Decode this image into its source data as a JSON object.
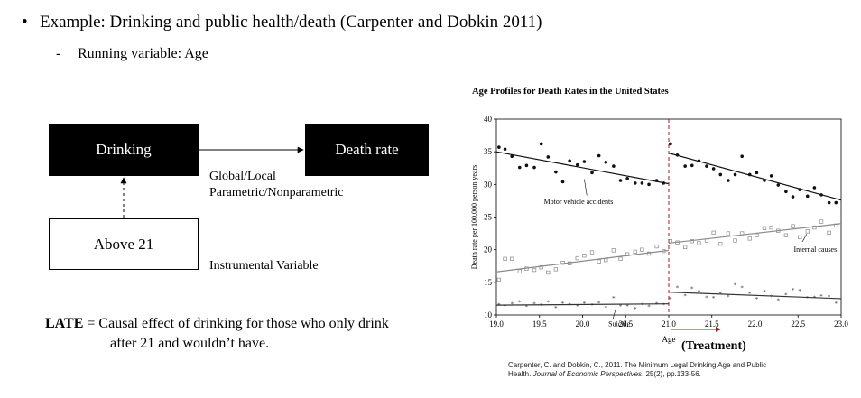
{
  "bullet": {
    "text": "Example: Drinking and public health/death (Carpenter and Dobkin 2011)"
  },
  "sub_bullet": {
    "marker": "-",
    "text": "Running variable: Age"
  },
  "diagram": {
    "drinking": "Drinking",
    "death_rate": "Death rate",
    "above21": "Above 21",
    "label_global_local": "Global/Local",
    "label_parametric": "Parametric/Nonparametric",
    "label_iv": "Instrumental Variable"
  },
  "late": {
    "term": "LATE",
    "line1": " = Causal effect of drinking for those who only drink",
    "line2": "after 21 and wouldn’t have."
  },
  "chart_title": "Age Profiles for Death Rates in the United States",
  "citation": {
    "line1": "Carpenter, C. and Dobkin, C., 2011. The Minimum Legal Drinking Age and Public",
    "line2_pre": "Health. ",
    "journal": "Journal of Economic Perspectives",
    "vol": ", 25",
    "issue": "(2), pp.133-56."
  },
  "chart_data": {
    "type": "scatter",
    "title": "Age Profiles for Death Rates in the United States",
    "xlabel": "Age",
    "ylabel": "Death rate per 100,000 person years",
    "xlim": [
      19.0,
      23.0
    ],
    "ylim": [
      10,
      40
    ],
    "xticks": [
      "19.0",
      "19.5",
      "20.0",
      "20.5",
      "21.0",
      "21.5",
      "22.0",
      "22.5",
      "23.0"
    ],
    "yticks": [
      "10",
      "15",
      "20",
      "25",
      "30",
      "35",
      "40"
    ],
    "cutoff": 21.0,
    "treatment_label": "(Treatment)",
    "series": [
      {
        "name": "Motor vehicle accidents",
        "marker": "filled-circle",
        "points": [
          [
            19.03,
            35.7
          ],
          [
            19.1,
            35.4
          ],
          [
            19.18,
            34.3
          ],
          [
            19.27,
            32.6
          ],
          [
            19.35,
            32.9
          ],
          [
            19.44,
            32.6
          ],
          [
            19.52,
            36.2
          ],
          [
            19.6,
            34.2
          ],
          [
            19.69,
            31.9
          ],
          [
            19.77,
            30.4
          ],
          [
            19.85,
            33.6
          ],
          [
            19.94,
            33.0
          ],
          [
            20.02,
            33.5
          ],
          [
            20.11,
            31.8
          ],
          [
            20.19,
            34.4
          ],
          [
            20.27,
            33.4
          ],
          [
            20.36,
            32.8
          ],
          [
            20.44,
            30.6
          ],
          [
            20.52,
            30.9
          ],
          [
            20.61,
            30.2
          ],
          [
            20.69,
            30.2
          ],
          [
            20.77,
            30.0
          ],
          [
            20.86,
            30.6
          ],
          [
            20.94,
            30.2
          ],
          [
            21.02,
            36.2
          ],
          [
            21.1,
            34.5
          ],
          [
            21.19,
            32.8
          ],
          [
            21.27,
            32.9
          ],
          [
            21.35,
            33.6
          ],
          [
            21.44,
            32.8
          ],
          [
            21.52,
            32.4
          ],
          [
            21.6,
            31.5
          ],
          [
            21.69,
            30.6
          ],
          [
            21.77,
            31.5
          ],
          [
            21.85,
            34.3
          ],
          [
            21.94,
            31.5
          ],
          [
            22.02,
            31.8
          ],
          [
            22.11,
            30.6
          ],
          [
            22.19,
            31.3
          ],
          [
            22.27,
            29.9
          ],
          [
            22.36,
            28.9
          ],
          [
            22.44,
            28.1
          ],
          [
            22.52,
            29.2
          ],
          [
            22.61,
            28.2
          ],
          [
            22.69,
            29.5
          ],
          [
            22.77,
            28.4
          ],
          [
            22.86,
            27.2
          ],
          [
            22.94,
            27.2
          ]
        ],
        "fit": [
          [
            [
              19.0,
              35.0
            ],
            [
              21.0,
              30.1
            ]
          ],
          [
            [
              21.0,
              34.8
            ],
            [
              23.0,
              27.6
            ]
          ]
        ]
      },
      {
        "name": "Internal causes",
        "marker": "open-square",
        "points": [
          [
            19.03,
            15.4
          ],
          [
            19.1,
            18.6
          ],
          [
            19.18,
            18.6
          ],
          [
            19.27,
            16.7
          ],
          [
            19.35,
            17.1
          ],
          [
            19.44,
            16.9
          ],
          [
            19.52,
            17.3
          ],
          [
            19.6,
            16.5
          ],
          [
            19.69,
            17.0
          ],
          [
            19.77,
            18.0
          ],
          [
            19.85,
            17.9
          ],
          [
            19.94,
            18.7
          ],
          [
            20.02,
            19.1
          ],
          [
            20.11,
            19.6
          ],
          [
            20.19,
            18.2
          ],
          [
            20.27,
            18.4
          ],
          [
            20.36,
            19.9
          ],
          [
            20.44,
            18.6
          ],
          [
            20.52,
            19.3
          ],
          [
            20.61,
            19.7
          ],
          [
            20.69,
            20.0
          ],
          [
            20.77,
            19.4
          ],
          [
            20.86,
            20.5
          ],
          [
            20.94,
            19.8
          ],
          [
            21.02,
            21.3
          ],
          [
            21.1,
            21.1
          ],
          [
            21.19,
            20.4
          ],
          [
            21.27,
            21.3
          ],
          [
            21.35,
            21.0
          ],
          [
            21.44,
            21.4
          ],
          [
            21.52,
            22.6
          ],
          [
            21.6,
            20.9
          ],
          [
            21.69,
            22.5
          ],
          [
            21.77,
            21.4
          ],
          [
            21.85,
            22.5
          ],
          [
            21.94,
            21.7
          ],
          [
            22.02,
            22.2
          ],
          [
            22.11,
            23.3
          ],
          [
            22.19,
            23.4
          ],
          [
            22.27,
            22.9
          ],
          [
            22.36,
            22.2
          ],
          [
            22.44,
            23.6
          ],
          [
            22.52,
            21.9
          ],
          [
            22.61,
            22.8
          ],
          [
            22.69,
            23.4
          ],
          [
            22.77,
            24.3
          ],
          [
            22.86,
            22.6
          ],
          [
            22.94,
            23.7
          ]
        ],
        "fit": [
          [
            [
              19.0,
              16.6
            ],
            [
              21.0,
              19.9
            ]
          ],
          [
            [
              21.0,
              21.0
            ],
            [
              23.0,
              24.0
            ]
          ]
        ]
      },
      {
        "name": "Suicide",
        "marker": "asterisk",
        "points": [
          [
            19.03,
            11.6
          ],
          [
            19.1,
            11.4
          ],
          [
            19.18,
            11.7
          ],
          [
            19.27,
            12.0
          ],
          [
            19.35,
            11.3
          ],
          [
            19.44,
            11.7
          ],
          [
            19.52,
            11.5
          ],
          [
            19.6,
            12.0
          ],
          [
            19.69,
            11.1
          ],
          [
            19.77,
            11.8
          ],
          [
            19.85,
            11.6
          ],
          [
            19.94,
            11.4
          ],
          [
            20.02,
            11.8
          ],
          [
            20.11,
            11.5
          ],
          [
            20.19,
            11.9
          ],
          [
            20.27,
            11.2
          ],
          [
            20.36,
            12.6
          ],
          [
            20.44,
            11.4
          ],
          [
            20.52,
            11.4
          ],
          [
            20.61,
            11.0
          ],
          [
            20.69,
            11.6
          ],
          [
            20.77,
            11.3
          ],
          [
            20.86,
            11.7
          ],
          [
            20.94,
            11.6
          ],
          [
            21.02,
            12.5
          ],
          [
            21.1,
            14.2
          ],
          [
            21.19,
            13.0
          ],
          [
            21.27,
            14.1
          ],
          [
            21.35,
            13.6
          ],
          [
            21.44,
            12.7
          ],
          [
            21.52,
            12.6
          ],
          [
            21.6,
            13.3
          ],
          [
            21.69,
            12.8
          ],
          [
            21.77,
            14.6
          ],
          [
            21.85,
            14.2
          ],
          [
            21.94,
            13.3
          ],
          [
            22.02,
            12.5
          ],
          [
            22.11,
            13.6
          ],
          [
            22.19,
            12.8
          ],
          [
            22.27,
            12.3
          ],
          [
            22.36,
            13.1
          ],
          [
            22.44,
            13.9
          ],
          [
            22.52,
            13.7
          ],
          [
            22.61,
            12.6
          ],
          [
            22.69,
            12.7
          ],
          [
            22.77,
            12.9
          ],
          [
            22.86,
            12.8
          ],
          [
            22.94,
            11.8
          ]
        ],
        "fit": [
          [
            [
              19.0,
              11.5
            ],
            [
              21.0,
              11.7
            ]
          ],
          [
            [
              21.0,
              13.5
            ],
            [
              23.0,
              12.5
            ]
          ]
        ]
      }
    ],
    "colors": {
      "mva": "#111111",
      "internal": "#8a8a8a",
      "suicide": "#333333",
      "cutoff": "#a51c1c"
    }
  }
}
